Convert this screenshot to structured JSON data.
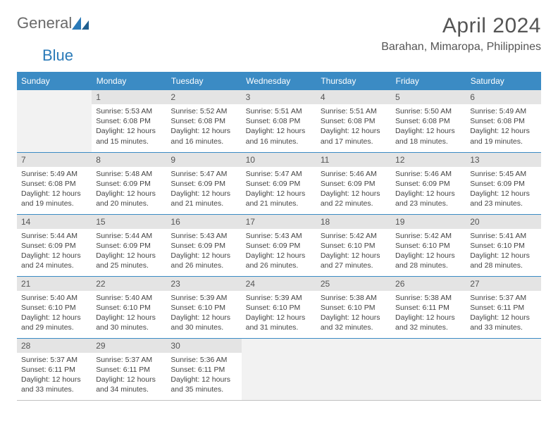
{
  "logo": {
    "part1": "General",
    "part2": "Blue"
  },
  "title": "April 2024",
  "location": "Barahan, Mimaropa, Philippines",
  "colors": {
    "header_bg": "#3b8bc4",
    "header_text": "#ffffff",
    "daynum_bg": "#e4e4e4",
    "border": "#3b8bc4",
    "logo_accent": "#2a7ab8",
    "text": "#444444"
  },
  "weekdays": [
    "Sunday",
    "Monday",
    "Tuesday",
    "Wednesday",
    "Thursday",
    "Friday",
    "Saturday"
  ],
  "grid": {
    "first_weekday_index": 1,
    "days_in_month": 30,
    "rows": 5,
    "cols": 7
  },
  "days": [
    {
      "n": 1,
      "sunrise": "5:53 AM",
      "sunset": "6:08 PM",
      "daylight": "12 hours and 15 minutes."
    },
    {
      "n": 2,
      "sunrise": "5:52 AM",
      "sunset": "6:08 PM",
      "daylight": "12 hours and 16 minutes."
    },
    {
      "n": 3,
      "sunrise": "5:51 AM",
      "sunset": "6:08 PM",
      "daylight": "12 hours and 16 minutes."
    },
    {
      "n": 4,
      "sunrise": "5:51 AM",
      "sunset": "6:08 PM",
      "daylight": "12 hours and 17 minutes."
    },
    {
      "n": 5,
      "sunrise": "5:50 AM",
      "sunset": "6:08 PM",
      "daylight": "12 hours and 18 minutes."
    },
    {
      "n": 6,
      "sunrise": "5:49 AM",
      "sunset": "6:08 PM",
      "daylight": "12 hours and 19 minutes."
    },
    {
      "n": 7,
      "sunrise": "5:49 AM",
      "sunset": "6:08 PM",
      "daylight": "12 hours and 19 minutes."
    },
    {
      "n": 8,
      "sunrise": "5:48 AM",
      "sunset": "6:09 PM",
      "daylight": "12 hours and 20 minutes."
    },
    {
      "n": 9,
      "sunrise": "5:47 AM",
      "sunset": "6:09 PM",
      "daylight": "12 hours and 21 minutes."
    },
    {
      "n": 10,
      "sunrise": "5:47 AM",
      "sunset": "6:09 PM",
      "daylight": "12 hours and 21 minutes."
    },
    {
      "n": 11,
      "sunrise": "5:46 AM",
      "sunset": "6:09 PM",
      "daylight": "12 hours and 22 minutes."
    },
    {
      "n": 12,
      "sunrise": "5:46 AM",
      "sunset": "6:09 PM",
      "daylight": "12 hours and 23 minutes."
    },
    {
      "n": 13,
      "sunrise": "5:45 AM",
      "sunset": "6:09 PM",
      "daylight": "12 hours and 23 minutes."
    },
    {
      "n": 14,
      "sunrise": "5:44 AM",
      "sunset": "6:09 PM",
      "daylight": "12 hours and 24 minutes."
    },
    {
      "n": 15,
      "sunrise": "5:44 AM",
      "sunset": "6:09 PM",
      "daylight": "12 hours and 25 minutes."
    },
    {
      "n": 16,
      "sunrise": "5:43 AM",
      "sunset": "6:09 PM",
      "daylight": "12 hours and 26 minutes."
    },
    {
      "n": 17,
      "sunrise": "5:43 AM",
      "sunset": "6:09 PM",
      "daylight": "12 hours and 26 minutes."
    },
    {
      "n": 18,
      "sunrise": "5:42 AM",
      "sunset": "6:10 PM",
      "daylight": "12 hours and 27 minutes."
    },
    {
      "n": 19,
      "sunrise": "5:42 AM",
      "sunset": "6:10 PM",
      "daylight": "12 hours and 28 minutes."
    },
    {
      "n": 20,
      "sunrise": "5:41 AM",
      "sunset": "6:10 PM",
      "daylight": "12 hours and 28 minutes."
    },
    {
      "n": 21,
      "sunrise": "5:40 AM",
      "sunset": "6:10 PM",
      "daylight": "12 hours and 29 minutes."
    },
    {
      "n": 22,
      "sunrise": "5:40 AM",
      "sunset": "6:10 PM",
      "daylight": "12 hours and 30 minutes."
    },
    {
      "n": 23,
      "sunrise": "5:39 AM",
      "sunset": "6:10 PM",
      "daylight": "12 hours and 30 minutes."
    },
    {
      "n": 24,
      "sunrise": "5:39 AM",
      "sunset": "6:10 PM",
      "daylight": "12 hours and 31 minutes."
    },
    {
      "n": 25,
      "sunrise": "5:38 AM",
      "sunset": "6:10 PM",
      "daylight": "12 hours and 32 minutes."
    },
    {
      "n": 26,
      "sunrise": "5:38 AM",
      "sunset": "6:11 PM",
      "daylight": "12 hours and 32 minutes."
    },
    {
      "n": 27,
      "sunrise": "5:37 AM",
      "sunset": "6:11 PM",
      "daylight": "12 hours and 33 minutes."
    },
    {
      "n": 28,
      "sunrise": "5:37 AM",
      "sunset": "6:11 PM",
      "daylight": "12 hours and 33 minutes."
    },
    {
      "n": 29,
      "sunrise": "5:37 AM",
      "sunset": "6:11 PM",
      "daylight": "12 hours and 34 minutes."
    },
    {
      "n": 30,
      "sunrise": "5:36 AM",
      "sunset": "6:11 PM",
      "daylight": "12 hours and 35 minutes."
    }
  ],
  "labels": {
    "sunrise": "Sunrise:",
    "sunset": "Sunset:",
    "daylight": "Daylight:"
  }
}
